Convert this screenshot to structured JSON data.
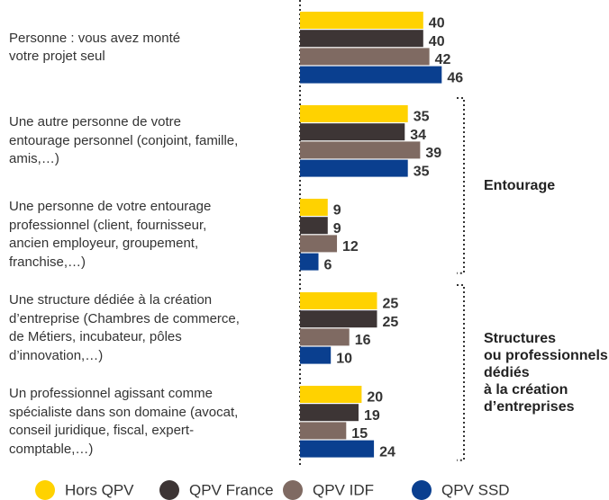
{
  "chart_data": {
    "type": "hbar",
    "categories": [
      "Personne : vous avez monté\nvotre projet seul",
      "Une autre personne de votre\nentourage personnel (conjoint, famille,\namis,…)",
      "Une personne de votre entourage\nprofessionnel (client, fournisseur,\nancien employeur, groupement,\nfranchise,…)",
      "Une structure dédiée à la création\nd’entreprise (Chambres de commerce,\nde Métiers, incubateur, pôles\nd’innovation,…)",
      "Un professionnel agissant comme\nspécialiste dans son domaine (avocat,\nconseil juridique, fiscal, expert-\ncomptable,…)"
    ],
    "series": [
      {
        "name": "Hors QPV",
        "color": "#ffd200",
        "values": [
          40,
          35,
          9,
          25,
          20
        ]
      },
      {
        "name": "QPV France",
        "color": "#3d3535",
        "values": [
          40,
          34,
          9,
          25,
          19
        ]
      },
      {
        "name": "QPV IDF",
        "color": "#7f6a62",
        "values": [
          42,
          39,
          12,
          16,
          15
        ]
      },
      {
        "name": "QPV SSD",
        "color": "#0a3f8f",
        "values": [
          46,
          35,
          6,
          10,
          24
        ]
      }
    ],
    "annotations": [
      "Entourage",
      "Structures\nou professionnels\ndédiés\nà la création\nd’entreprises"
    ]
  }
}
